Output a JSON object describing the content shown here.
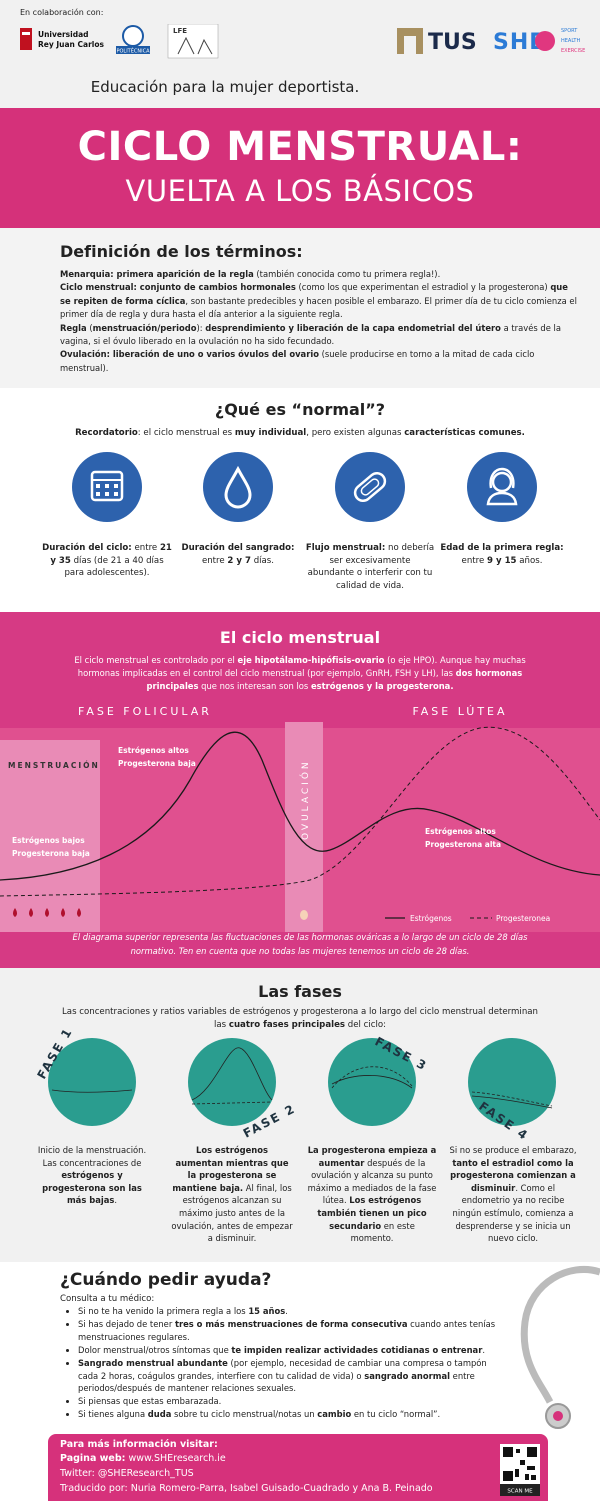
{
  "header": {
    "collab": "En colaboración con:",
    "logos": {
      "urjc": [
        "Universidad",
        "Rey Juan Carlos"
      ],
      "upm": "POLITÉCNICA",
      "lfe": "LFE",
      "tus": "TUS",
      "she": "SHE",
      "she_words": [
        "SPORT",
        "HEALTH",
        "EXERCISE"
      ]
    },
    "tagline": "Educación para la mujer deportista."
  },
  "title": {
    "main": "CICLO MENSTRUAL:",
    "sub": "VUELTA A LOS BÁSICOS"
  },
  "definitions": {
    "heading": "Definición de los términos:",
    "paragraphs": [
      [
        "Menarquia: primera aparición de la regla",
        " (también conocida como tu primera regla!)."
      ],
      [
        "Ciclo menstrual: conjunto de cambios hormonales",
        " (como los que experimentan el estradiol y la progesterona) ",
        "que se repiten de forma cíclica",
        ", son bastante predecibles y hacen posible el embarazo. El primer día de tu ciclo comienza el primer día de regla y dura hasta el día anterior a la siguiente regla."
      ],
      [
        "Regla",
        " (",
        "menstruación/periodo",
        "): ",
        "desprendimiento y liberación de la capa endometrial del útero",
        " a través de la vagina, si el óvulo liberado en la ovulación no ha sido fecundado."
      ],
      [
        "Ovulación: liberación de uno o varios óvulos del ovario",
        " (suele producirse en torno a la mitad de cada ciclo menstrual)."
      ]
    ]
  },
  "normal": {
    "heading": "¿Qué es “normal”?",
    "intro": [
      "Recordatorio",
      ": el ciclo menstrual es ",
      "muy individual",
      ", pero existen algunas ",
      "características comunes."
    ],
    "items": [
      [
        "Duración del ciclo:",
        " entre ",
        "21 y 35",
        " días (de 21 a 40 días para adolescentes)."
      ],
      [
        "Duración del sangrado:",
        " entre ",
        "2 y 7",
        " días."
      ],
      [
        "Flujo menstrual:",
        " no debería ser excesivamente abundante o interferir con tu calidad de vida."
      ],
      [
        "Edad de la primera regla:",
        " entre ",
        "9 y 15",
        " años."
      ]
    ]
  },
  "cycle": {
    "heading": "El ciclo menstrual",
    "intro": [
      "El ciclo menstrual es controlado por el ",
      "eje hipotálamo-hipófisis-ovario",
      " (o eje HPO). Aunque hay muchas hormonas implicadas en el control del ciclo menstrual (por ejemplo, GnRH, FSH y LH), las ",
      "dos hormonas principales",
      " que nos interesan son los ",
      "estrógenos y la progesterona."
    ],
    "phase_follicular": "FASE FOLICULAR",
    "phase_luteal": "FASE LÚTEA",
    "menstruation": "MENSTRUACIÓN",
    "ovulation": "OVULACIÓN",
    "label_low": [
      "Estrógenos bajos",
      "Progesterona baja"
    ],
    "label_high_e": [
      "Estrógenos altos",
      "Progesterona baja"
    ],
    "label_high_both": [
      "Estrógenos altos",
      "Progesterona alta"
    ],
    "legend": [
      "Estrógenos",
      "Progesteronea"
    ],
    "note": "El diagrama superior representa las fluctuaciones de las hormonas ováricas a lo largo de un ciclo de 28 días normativo. Ten en cuenta que no todas las mujeres tenemos un ciclo de 28 días."
  },
  "phases": {
    "heading": "Las fases",
    "intro": [
      "Las concentraciones y ratios variables de estrógenos y progesterona a lo largo del ciclo menstrual determinan las ",
      "cuatro fases principales",
      " del ciclo:"
    ],
    "labels": [
      "FASE 1",
      "FASE 2",
      "FASE 3",
      "FASE 4"
    ],
    "texts": [
      [
        "Inicio de la menstruación. Las concentraciones de ",
        "estrógenos y progesterona son las más bajas",
        "."
      ],
      [
        "Los estrógenos aumentan mientras que la progesterona se mantiene baja.",
        " Al final, los estrógenos alcanzan su máximo justo antes de la ovulación, antes de empezar a disminuir."
      ],
      [
        "La progesterona empieza a aumentar",
        " después de la ovulación y alcanza su punto máximo a mediados de la fase lútea. ",
        "Los estrógenos también tienen un pico secundario",
        " en este momento."
      ],
      [
        "Si no se produce el embarazo, ",
        "tanto el estradiol como la progesterona comienzan a disminuir",
        ". Como el endometrio ya no recibe ningún estímulo, comienza a desprenderse y se inicia un nuevo ciclo."
      ]
    ]
  },
  "help": {
    "heading": "¿Cuándo pedir ayuda?",
    "lead": "Consulta a tu médico:",
    "items": [
      [
        "Si no te ha venido la primera regla a los ",
        "15 años",
        "."
      ],
      [
        "Si has dejado de tener ",
        "tres o más menstruaciones de forma consecutiva",
        " cuando antes tenías menstruaciones regulares."
      ],
      [
        "Dolor menstrual/otros síntomas que ",
        "te impiden realizar actividades cotidianas o entrenar",
        "."
      ],
      [
        "Sangrado menstrual abundante",
        " (por ejemplo, necesidad de cambiar una compresa o tampón cada 2 horas, coágulos grandes, interfiere con tu calidad de vida) o ",
        "sangrado anormal",
        " entre periodos/después de mantener relaciones sexuales."
      ],
      [
        "Si piensas que estas embarazada."
      ],
      [
        "Si tienes alguna ",
        "duda",
        " sobre tu ciclo menstrual/notas un ",
        "cambio",
        " en tu ciclo “normal”."
      ]
    ]
  },
  "footer": {
    "visit": "Para más información visitar:",
    "web": [
      "Pagina web:",
      " www.SHEresearch.ie"
    ],
    "twitter": "Twitter: @SHEResearch_TUS",
    "credits": "Traducido por: Nuria Romero-Parra, Isabel Guisado-Cuadrado y Ana B. Peinado",
    "scan": "SCAN ME"
  }
}
